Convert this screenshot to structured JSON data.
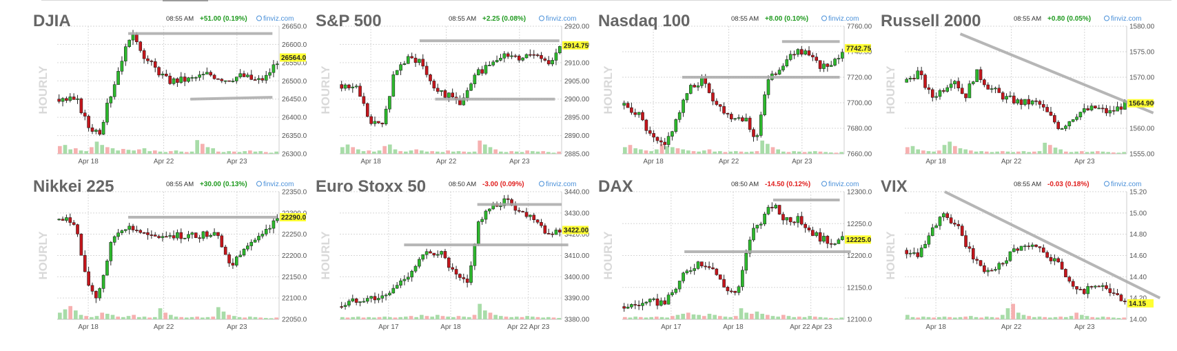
{
  "page": {
    "source": "finviz.com",
    "watermark": "HOURLY"
  },
  "colors": {
    "up": "#2db82d",
    "down": "#c4161c",
    "trendline": "#aaaaaa",
    "price_tag": "#ffff33",
    "vol_up": "#a8dca8",
    "vol_down": "#f6b0b0",
    "pos_change": "#1f9a1f",
    "neg_change": "#e0201f",
    "brand": "#4a90d9",
    "grid": "#d6d6d6"
  },
  "chart_data": [
    {
      "type": "candlestick",
      "title": "DJIA",
      "time": "08:55 AM",
      "change": "+51.00 (0.19%)",
      "change_dir": "up",
      "source": "finviz.com",
      "ylabel": "HOURLY",
      "yticks": [
        "26650.0",
        "26600.0",
        "26550.0",
        "26500.0",
        "26450.0",
        "26400.0",
        "26350.0",
        "26300.0"
      ],
      "ylim": [
        26300,
        26650
      ],
      "xticks": [
        {
          "label": "Apr 18",
          "pos": 0.14
        },
        {
          "label": "Apr 22",
          "pos": 0.48
        },
        {
          "label": "Apr 23",
          "pos": 0.81
        }
      ],
      "last": "26564.0",
      "last_value": 26564,
      "path": [
        [
          0,
          26450
        ],
        [
          0.09,
          26445
        ],
        [
          0.14,
          26375
        ],
        [
          0.19,
          26360
        ],
        [
          0.25,
          26480
        ],
        [
          0.3,
          26580
        ],
        [
          0.35,
          26625
        ],
        [
          0.4,
          26560
        ],
        [
          0.5,
          26500
        ],
        [
          0.6,
          26505
        ],
        [
          0.68,
          26520
        ],
        [
          0.76,
          26505
        ],
        [
          0.83,
          26515
        ],
        [
          0.9,
          26500
        ],
        [
          0.94,
          26510
        ],
        [
          1,
          26564
        ]
      ],
      "trendlines": [
        [
          0.32,
          26630,
          0.97,
          26630
        ],
        [
          0.6,
          26450,
          0.97,
          26455
        ]
      ],
      "volume": [
        0.35,
        0.4,
        0.2,
        0.25,
        0.15,
        0.12,
        0.3,
        0.55,
        0.4,
        0.3,
        0.25,
        0.15,
        0.22,
        0.18,
        0.15,
        0.2,
        0.25,
        0.12,
        0.15,
        0.1,
        0.08,
        0.12,
        0.15,
        0.1,
        0.08,
        0.1,
        0.62,
        0.45,
        0.3,
        0.25,
        0.1,
        0.08,
        0.12,
        0.1,
        0.08,
        0.12,
        0.15,
        0.1,
        0.12,
        0.08,
        0.05,
        0.1
      ]
    },
    {
      "type": "candlestick",
      "title": "S&P 500",
      "time": "08:55 AM",
      "change": "+2.25 (0.08%)",
      "change_dir": "up",
      "source": "finviz.com",
      "ylabel": "HOURLY",
      "yticks": [
        "2920.00",
        "2915.00",
        "2910.00",
        "2905.00",
        "2900.00",
        "2895.00",
        "2890.00",
        "2885.00"
      ],
      "ylim": [
        2885,
        2920
      ],
      "xticks": [
        {
          "label": "Apr 18",
          "pos": 0.14
        },
        {
          "label": "Apr 22",
          "pos": 0.48
        },
        {
          "label": "Apr 23",
          "pos": 0.81
        }
      ],
      "last": "2914.75",
      "last_value": 2914.75,
      "path": [
        [
          0,
          2904
        ],
        [
          0.08,
          2903
        ],
        [
          0.14,
          2893
        ],
        [
          0.19,
          2893
        ],
        [
          0.25,
          2908
        ],
        [
          0.31,
          2911
        ],
        [
          0.36,
          2911
        ],
        [
          0.42,
          2904
        ],
        [
          0.48,
          2901
        ],
        [
          0.55,
          2899
        ],
        [
          0.62,
          2907
        ],
        [
          0.72,
          2912
        ],
        [
          0.8,
          2911
        ],
        [
          0.88,
          2913
        ],
        [
          0.94,
          2910
        ],
        [
          1,
          2914.75
        ]
      ],
      "trendlines": [
        [
          0.36,
          2916,
          0.99,
          2916
        ],
        [
          0.43,
          2900,
          0.97,
          2900
        ]
      ],
      "volume": [
        0.3,
        0.42,
        0.3,
        0.2,
        0.12,
        0.15,
        0.1,
        0.15,
        0.35,
        0.42,
        0.2,
        0.12,
        0.1,
        0.15,
        0.2,
        0.15,
        0.1,
        0.12,
        0.1,
        0.08,
        0.15,
        0.1,
        0.12,
        0.1,
        0.08,
        0.1,
        0.6,
        0.42,
        0.3,
        0.2,
        0.1,
        0.08,
        0.12,
        0.1,
        0.08,
        0.15,
        0.12,
        0.1,
        0.12,
        0.08,
        0.05,
        0.1
      ]
    },
    {
      "type": "candlestick",
      "title": "Nasdaq 100",
      "time": "08:55 AM",
      "change": "+8.00 (0.10%)",
      "change_dir": "up",
      "source": "finviz.com",
      "ylabel": "HOURLY",
      "yticks": [
        "7760.00",
        "7740.00",
        "7720.00",
        "7700.00",
        "7680.00",
        "7660.00"
      ],
      "ylim": [
        7660,
        7760
      ],
      "xticks": [
        {
          "label": "Apr 18",
          "pos": 0.14
        },
        {
          "label": "Apr 22",
          "pos": 0.48
        },
        {
          "label": "Apr 23",
          "pos": 0.81
        }
      ],
      "last": "7742.75",
      "last_value": 7742.75,
      "path": [
        [
          0,
          7698
        ],
        [
          0.07,
          7692
        ],
        [
          0.13,
          7672
        ],
        [
          0.19,
          7665
        ],
        [
          0.25,
          7690
        ],
        [
          0.3,
          7710
        ],
        [
          0.36,
          7718
        ],
        [
          0.42,
          7700
        ],
        [
          0.48,
          7690
        ],
        [
          0.56,
          7688
        ],
        [
          0.6,
          7668
        ],
        [
          0.65,
          7715
        ],
        [
          0.72,
          7730
        ],
        [
          0.8,
          7742
        ],
        [
          0.88,
          7730
        ],
        [
          0.94,
          7727
        ],
        [
          1,
          7742.75
        ]
      ],
      "trendlines": [
        [
          0.72,
          7748,
          0.98,
          7748
        ],
        [
          0.27,
          7720,
          0.98,
          7720
        ]
      ],
      "volume": [
        0.3,
        0.4,
        0.25,
        0.2,
        0.15,
        0.12,
        0.2,
        0.45,
        0.35,
        0.3,
        0.25,
        0.2,
        0.15,
        0.12,
        0.1,
        0.15,
        0.2,
        0.1,
        0.12,
        0.08,
        0.1,
        0.12,
        0.1,
        0.08,
        0.1,
        0.12,
        0.6,
        0.45,
        0.3,
        0.2,
        0.1,
        0.08,
        0.12,
        0.1,
        0.08,
        0.1,
        0.12,
        0.1,
        0.08,
        0.06,
        0.05,
        0.08
      ]
    },
    {
      "type": "candlestick",
      "title": "Russell 2000",
      "time": "08:55 AM",
      "change": "+0.80 (0.05%)",
      "change_dir": "up",
      "source": "finviz.com",
      "ylabel": "HOURLY",
      "yticks": [
        "1580.00",
        "1575.00",
        "1570.00",
        "1565.00",
        "1560.00",
        "1555.00"
      ],
      "ylim": [
        1555,
        1580
      ],
      "xticks": [
        {
          "label": "Apr 18",
          "pos": 0.14
        },
        {
          "label": "Apr 22",
          "pos": 0.48
        },
        {
          "label": "Apr 23",
          "pos": 0.81
        }
      ],
      "last": "1564.90",
      "last_value": 1564.9,
      "path": [
        [
          0,
          1569
        ],
        [
          0.06,
          1571
        ],
        [
          0.12,
          1566
        ],
        [
          0.18,
          1568
        ],
        [
          0.22,
          1570
        ],
        [
          0.27,
          1566
        ],
        [
          0.32,
          1571
        ],
        [
          0.38,
          1568
        ],
        [
          0.45,
          1566
        ],
        [
          0.52,
          1565
        ],
        [
          0.6,
          1565
        ],
        [
          0.66,
          1562
        ],
        [
          0.7,
          1560
        ],
        [
          0.78,
          1563
        ],
        [
          0.86,
          1564
        ],
        [
          0.92,
          1563
        ],
        [
          1,
          1564.9
        ]
      ],
      "trendlines": [
        [
          0.25,
          1578.5,
          1.12,
          1563
        ]
      ],
      "volume": [
        0.3,
        0.35,
        0.2,
        0.15,
        0.12,
        0.1,
        0.15,
        0.4,
        0.55,
        0.35,
        0.25,
        0.2,
        0.15,
        0.1,
        0.12,
        0.1,
        0.08,
        0.1,
        0.12,
        0.1,
        0.08,
        0.1,
        0.12,
        0.08,
        0.1,
        0.12,
        0.5,
        0.4,
        0.28,
        0.2,
        0.1,
        0.08,
        0.1,
        0.12,
        0.08,
        0.1,
        0.12,
        0.1,
        0.08,
        0.06,
        0.05,
        0.08
      ]
    },
    {
      "type": "candlestick",
      "title": "Nikkei 225",
      "time": "08:55 AM",
      "change": "+30.00 (0.13%)",
      "change_dir": "up",
      "source": "finviz.com",
      "ylabel": "HOURLY",
      "yticks": [
        "22350.0",
        "22300.0",
        "22250.0",
        "22200.0",
        "22150.0",
        "22100.0",
        "22050.0"
      ],
      "ylim": [
        22050,
        22350
      ],
      "xticks": [
        {
          "label": "Apr 18",
          "pos": 0.14
        },
        {
          "label": "Apr 22",
          "pos": 0.48
        },
        {
          "label": "Apr 23",
          "pos": 0.81
        }
      ],
      "last": "22290.0",
      "last_value": 22290,
      "path": [
        [
          0,
          22285
        ],
        [
          0.08,
          22280
        ],
        [
          0.13,
          22140
        ],
        [
          0.18,
          22100
        ],
        [
          0.25,
          22240
        ],
        [
          0.3,
          22270
        ],
        [
          0.36,
          22260
        ],
        [
          0.42,
          22240
        ],
        [
          0.5,
          22250
        ],
        [
          0.58,
          22245
        ],
        [
          0.66,
          22250
        ],
        [
          0.72,
          22260
        ],
        [
          0.78,
          22170
        ],
        [
          0.85,
          22230
        ],
        [
          0.92,
          22240
        ],
        [
          1,
          22290
        ]
      ],
      "trendlines": [
        [
          0.32,
          22290,
          0.99,
          22290
        ]
      ],
      "volume": [
        0.3,
        0.45,
        0.6,
        0.4,
        0.2,
        0.15,
        0.1,
        0.15,
        0.3,
        0.25,
        0.2,
        0.12,
        0.1,
        0.15,
        0.2,
        0.1,
        0.12,
        0.08,
        0.1,
        0.5,
        0.3,
        0.2,
        0.12,
        0.1,
        0.08,
        0.1,
        0.12,
        0.08,
        0.1,
        0.12,
        0.55,
        0.35,
        0.2,
        0.15,
        0.1,
        0.08,
        0.12,
        0.1,
        0.08,
        0.06,
        0.05,
        0.08
      ]
    },
    {
      "type": "candlestick",
      "title": "Euro Stoxx 50",
      "time": "08:50 AM",
      "change": "-3.00 (0.09%)",
      "change_dir": "down",
      "source": "finviz.com",
      "ylabel": "HOURLY",
      "yticks": [
        "3440.00",
        "3430.00",
        "3420.00",
        "3410.00",
        "3400.00",
        "3390.00",
        "3380.00"
      ],
      "ylim": [
        3380,
        3440
      ],
      "xticks": [
        {
          "label": "Apr 17",
          "pos": 0.22
        },
        {
          "label": "Apr 18",
          "pos": 0.5
        },
        {
          "label": "Apr 22 Apr 23",
          "pos": 0.85
        }
      ],
      "last": "3422.00",
      "last_value": 3422,
      "path": [
        [
          0,
          3386
        ],
        [
          0.1,
          3390
        ],
        [
          0.2,
          3390
        ],
        [
          0.3,
          3400
        ],
        [
          0.38,
          3410
        ],
        [
          0.45,
          3412
        ],
        [
          0.52,
          3400
        ],
        [
          0.58,
          3396
        ],
        [
          0.62,
          3425
        ],
        [
          0.68,
          3432
        ],
        [
          0.75,
          3436
        ],
        [
          0.82,
          3430
        ],
        [
          0.88,
          3428
        ],
        [
          0.94,
          3420
        ],
        [
          1,
          3422
        ]
      ],
      "trendlines": [
        [
          0.29,
          3415,
          1.03,
          3415
        ],
        [
          0.62,
          3434,
          1.0,
          3434
        ]
      ],
      "volume": [
        0.1,
        0.08,
        0.1,
        0.12,
        0.08,
        0.1,
        0.08,
        0.1,
        0.12,
        0.1,
        0.08,
        0.1,
        0.12,
        0.15,
        0.1,
        0.2,
        0.15,
        0.12,
        0.2,
        0.15,
        0.12,
        0.1,
        0.15,
        0.12,
        0.1,
        0.2,
        0.7,
        0.4,
        0.3,
        0.2,
        0.15,
        0.12,
        0.1,
        0.12,
        0.1,
        0.15,
        0.12,
        0.1,
        0.08,
        0.1,
        0.08,
        0.06
      ]
    },
    {
      "type": "candlestick",
      "title": "DAX",
      "time": "08:50 AM",
      "change": "-14.50 (0.12%)",
      "change_dir": "down",
      "source": "finviz.com",
      "ylabel": "HOURLY",
      "yticks": [
        "12300.0",
        "12250.0",
        "12200.0",
        "12150.0",
        "12100.0"
      ],
      "ylim": [
        12100,
        12300
      ],
      "xticks": [
        {
          "label": "Apr 17",
          "pos": 0.22
        },
        {
          "label": "Apr 18",
          "pos": 0.5
        },
        {
          "label": "Apr 22 Apr 23",
          "pos": 0.85
        }
      ],
      "last": "12225.0",
      "last_value": 12225,
      "path": [
        [
          0,
          12120
        ],
        [
          0.1,
          12125
        ],
        [
          0.2,
          12128
        ],
        [
          0.28,
          12170
        ],
        [
          0.34,
          12190
        ],
        [
          0.4,
          12185
        ],
        [
          0.46,
          12150
        ],
        [
          0.52,
          12140
        ],
        [
          0.58,
          12235
        ],
        [
          0.64,
          12262
        ],
        [
          0.68,
          12280
        ],
        [
          0.72,
          12260
        ],
        [
          0.8,
          12255
        ],
        [
          0.86,
          12235
        ],
        [
          0.92,
          12222
        ],
        [
          1,
          12225
        ]
      ],
      "trendlines": [
        [
          0.28,
          12206,
          1.03,
          12206
        ],
        [
          0.68,
          12287,
          0.98,
          12287
        ]
      ],
      "volume": [
        0.1,
        0.08,
        0.12,
        0.1,
        0.08,
        0.1,
        0.12,
        0.1,
        0.08,
        0.15,
        0.2,
        0.25,
        0.3,
        0.22,
        0.2,
        0.15,
        0.25,
        0.2,
        0.15,
        0.12,
        0.1,
        0.15,
        0.5,
        0.3,
        0.25,
        0.35,
        0.25,
        0.2,
        0.15,
        0.12,
        0.2,
        0.15,
        0.1,
        0.12,
        0.1,
        0.15,
        0.12,
        0.1,
        0.08,
        0.06,
        0.05,
        0.08
      ]
    },
    {
      "type": "candlestick",
      "title": "VIX",
      "time": "08:55 AM",
      "change": "-0.03 (0.18%)",
      "change_dir": "down",
      "source": "finviz.com",
      "ylabel": "HOURLY",
      "yticks": [
        "15.20",
        "15.00",
        "14.80",
        "14.60",
        "14.40",
        "14.20",
        "14.00"
      ],
      "ylim": [
        14.0,
        15.2
      ],
      "xticks": [
        {
          "label": "Apr 18",
          "pos": 0.14
        },
        {
          "label": "Apr 22",
          "pos": 0.48
        },
        {
          "label": "Apr 23",
          "pos": 0.81
        }
      ],
      "last": "14.15",
      "last_value": 14.15,
      "path": [
        [
          0,
          14.65
        ],
        [
          0.06,
          14.62
        ],
        [
          0.12,
          14.85
        ],
        [
          0.18,
          14.98
        ],
        [
          0.24,
          14.85
        ],
        [
          0.3,
          14.6
        ],
        [
          0.36,
          14.45
        ],
        [
          0.42,
          14.5
        ],
        [
          0.5,
          14.68
        ],
        [
          0.58,
          14.68
        ],
        [
          0.64,
          14.62
        ],
        [
          0.7,
          14.5
        ],
        [
          0.78,
          14.25
        ],
        [
          0.84,
          14.3
        ],
        [
          0.9,
          14.3
        ],
        [
          0.96,
          14.2
        ],
        [
          1,
          14.15
        ]
      ],
      "trendlines": [
        [
          0.18,
          15.2,
          1.15,
          14.2
        ]
      ],
      "volume": [
        0.2,
        0.1,
        0.08,
        0.12,
        0.1,
        0.08,
        0.1,
        0.12,
        0.1,
        0.08,
        0.1,
        0.12,
        0.15,
        0.1,
        0.08,
        0.12,
        0.1,
        0.08,
        0.2,
        0.5,
        0.7,
        0.3,
        0.2,
        0.15,
        0.1,
        0.12,
        0.1,
        0.08,
        0.1,
        0.12,
        0.1,
        0.15,
        0.3,
        0.2,
        0.15,
        0.1,
        0.08,
        0.12,
        0.1,
        0.08,
        0.06,
        0.08
      ]
    }
  ]
}
